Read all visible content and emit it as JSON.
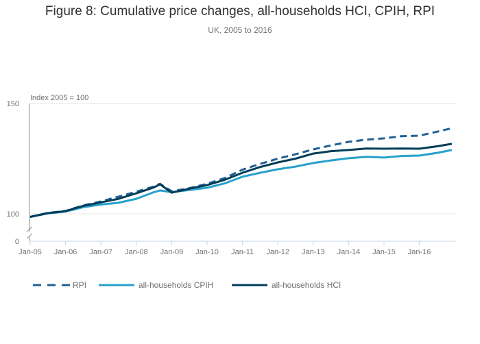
{
  "chart_data": {
    "type": "line",
    "title": "Figure 8: Cumulative price changes, all-households HCI, CPIH, RPI",
    "subtitle": "UK, 2005 to 2016",
    "ylabel": "Index 2005 = 100",
    "xlabel": "",
    "ylim": [
      100,
      150
    ],
    "y_axis_break": true,
    "yticks": [
      0,
      100,
      150
    ],
    "xticks": [
      "Jan-05",
      "Jan-06",
      "Jan-07",
      "Jan-08",
      "Jan-09",
      "Jan-10",
      "Jan-11",
      "Jan-12",
      "Jan-13",
      "Jan-14",
      "Jan-15",
      "Jan-16"
    ],
    "x": [
      "Jan-05",
      "Jul-05",
      "Jan-06",
      "Jul-06",
      "Jan-07",
      "Jul-07",
      "Jan-08",
      "Jul-08",
      "Sep-08",
      "Jan-09",
      "Jul-09",
      "Jan-10",
      "Jul-10",
      "Jan-11",
      "Jul-11",
      "Jan-12",
      "Jul-12",
      "Jan-13",
      "Jul-13",
      "Jan-14",
      "Jul-14",
      "Jan-15",
      "Jul-15",
      "Jan-16",
      "Jul-16",
      "Dec-16"
    ],
    "grid": true,
    "legend_position": "bottom-left",
    "series": [
      {
        "name": "RPI",
        "color": "#206095",
        "dash": true,
        "values": [
          98.6,
          100.4,
          101.3,
          103.8,
          105.6,
          107.8,
          110.0,
          112.4,
          113.6,
          110.2,
          111.6,
          113.6,
          116.2,
          120.0,
          122.6,
          125.0,
          127.0,
          129.2,
          131.0,
          132.6,
          133.6,
          134.2,
          135.2,
          135.4,
          137.2,
          138.8
        ]
      },
      {
        "name": "all-households CPIH",
        "color": "#27a0cc",
        "dash": false,
        "values": [
          98.6,
          100.2,
          101.0,
          103.0,
          104.2,
          105.0,
          106.8,
          109.8,
          110.6,
          109.8,
          110.8,
          111.8,
          113.8,
          116.8,
          118.6,
          120.2,
          121.4,
          123.0,
          124.2,
          125.2,
          125.8,
          125.5,
          126.2,
          126.4,
          127.6,
          128.9
        ]
      },
      {
        "name": "all-households HCI",
        "color": "#003c57",
        "dash": false,
        "values": [
          98.6,
          100.3,
          101.2,
          103.6,
          105.2,
          106.8,
          109.3,
          112.0,
          113.4,
          109.6,
          111.4,
          113.0,
          115.4,
          118.6,
          121.2,
          123.3,
          125.0,
          127.3,
          128.4,
          128.9,
          129.6,
          129.5,
          129.6,
          129.5,
          130.6,
          131.7
        ]
      }
    ]
  }
}
